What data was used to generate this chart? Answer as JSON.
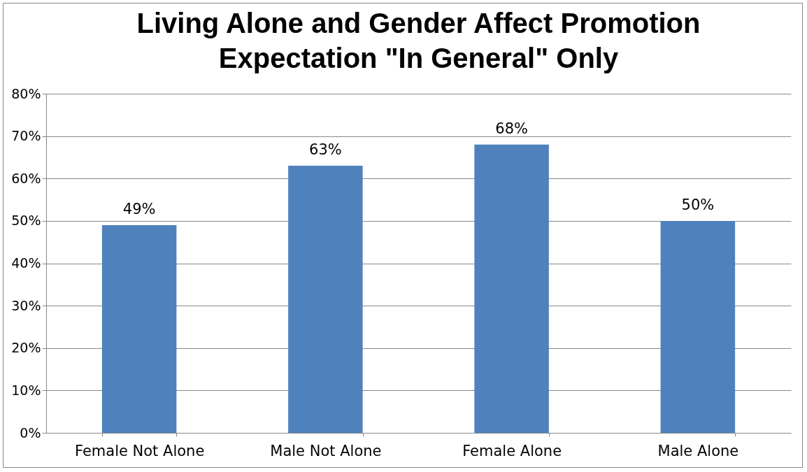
{
  "chart_data": {
    "type": "bar",
    "title": "Living Alone and Gender Affect Promotion Expectation \"In General\" Only",
    "categories": [
      "Female Not Alone",
      "Male Not Alone",
      "Female Alone",
      "Male Alone"
    ],
    "values": [
      49,
      63,
      68,
      50
    ],
    "value_labels": [
      "49%",
      "63%",
      "68%",
      "50%"
    ],
    "color": "#4f81bd",
    "ylim": [
      0,
      80
    ],
    "yticks": [
      {
        "value": 0,
        "label": "0%"
      },
      {
        "value": 10,
        "label": "10%"
      },
      {
        "value": 20,
        "label": "20%"
      },
      {
        "value": 30,
        "label": "30%"
      },
      {
        "value": 40,
        "label": "40%"
      },
      {
        "value": 50,
        "label": "50%"
      },
      {
        "value": 60,
        "label": "60%"
      },
      {
        "value": 70,
        "label": "70%"
      },
      {
        "value": 80,
        "label": "80%"
      }
    ],
    "grid": "y"
  }
}
